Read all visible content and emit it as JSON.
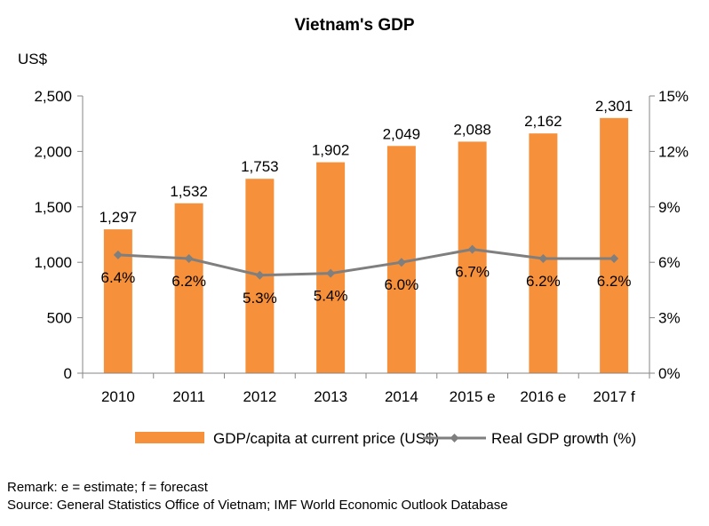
{
  "chart_data": {
    "type": "bar",
    "title": "Vietnam's GDP",
    "y_unit_label": "US$",
    "categories": [
      "2010",
      "2011",
      "2012",
      "2013",
      "2014",
      "2015 e",
      "2016 e",
      "2017 f"
    ],
    "series": [
      {
        "name": "GDP/capita at current price (US$)",
        "type": "bar",
        "axis": "left",
        "color": "#F7903A",
        "values": [
          1297,
          1532,
          1753,
          1902,
          2049,
          2088,
          2162,
          2301
        ],
        "labels": [
          "1,297",
          "1,532",
          "1,753",
          "1,902",
          "2,049",
          "2,088",
          "2,162",
          "2,301"
        ]
      },
      {
        "name": "Real GDP growth (%)",
        "type": "line",
        "axis": "right",
        "color": "#7F7F7F",
        "marker": "diamond",
        "values": [
          6.4,
          6.2,
          5.3,
          5.4,
          6.0,
          6.7,
          6.2,
          6.2
        ],
        "labels": [
          "6.4%",
          "6.2%",
          "5.3%",
          "5.4%",
          "6.0%",
          "6.7%",
          "6.2%",
          "6.2%"
        ]
      }
    ],
    "y_left": {
      "range": [
        0,
        2500
      ],
      "ticks": [
        0,
        500,
        1000,
        1500,
        2000,
        2500
      ],
      "tick_labels": [
        "0",
        "500",
        "1,000",
        "1,500",
        "2,000",
        "2,500"
      ]
    },
    "y_right": {
      "range": [
        0,
        15
      ],
      "ticks": [
        0,
        3,
        6,
        9,
        12,
        15
      ],
      "tick_labels": [
        "0%",
        "3%",
        "6%",
        "9%",
        "12%",
        "15%"
      ]
    },
    "grid": false,
    "legend_position": "bottom"
  },
  "notes": {
    "remark": "Remark: e = estimate; f = forecast",
    "source": "Source: General Statistics Office of Vietnam; IMF World Economic Outlook Database"
  }
}
